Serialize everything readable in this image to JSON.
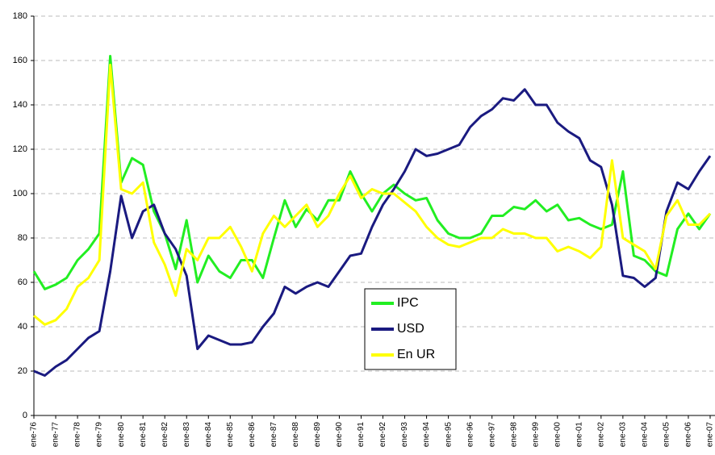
{
  "chart_data": {
    "type": "line",
    "categories": [
      "ene-76",
      null,
      "ene-77",
      null,
      "ene-78",
      null,
      "ene-79",
      null,
      "ene-80",
      null,
      "ene-81",
      null,
      "ene-82",
      null,
      "ene-83",
      null,
      "ene-84",
      null,
      "ene-85",
      null,
      "ene-86",
      null,
      "ene-87",
      null,
      "ene-88",
      null,
      "ene-89",
      null,
      "ene-90",
      null,
      "ene-91",
      null,
      "ene-92",
      null,
      "ene-93",
      null,
      "ene-94",
      null,
      "ene-95",
      null,
      "ene-96",
      null,
      "ene-97",
      null,
      "ene-98",
      null,
      "ene-99",
      null,
      "ene-00",
      null,
      "ene-01",
      null,
      "ene-02",
      null,
      "ene-03",
      null,
      "ene-04",
      null,
      "ene-05",
      null,
      "ene-06",
      null,
      "ene-07"
    ],
    "series": [
      {
        "name": "IPC",
        "color": "#22ee22",
        "values": [
          65,
          57,
          59,
          62,
          70,
          75,
          82,
          162,
          105,
          116,
          113,
          92,
          82,
          66,
          88,
          60,
          72,
          65,
          62,
          70,
          70,
          62,
          80,
          97,
          85,
          93,
          88,
          97,
          97,
          110,
          100,
          92,
          100,
          104,
          100,
          97,
          98,
          88,
          82,
          80,
          80,
          82,
          90,
          90,
          94,
          93,
          97,
          92,
          95,
          88,
          89,
          86,
          84,
          86,
          110,
          72,
          70,
          65,
          63,
          84,
          91,
          84,
          91
        ]
      },
      {
        "name": "USD",
        "color": "#1a1a80",
        "values": [
          20,
          18,
          22,
          25,
          30,
          35,
          38,
          65,
          99,
          80,
          92,
          95,
          82,
          75,
          63,
          30,
          36,
          34,
          32,
          32,
          33,
          40,
          46,
          58,
          55,
          58,
          60,
          58,
          65,
          72,
          73,
          85,
          95,
          102,
          110,
          120,
          117,
          118,
          120,
          122,
          130,
          135,
          138,
          143,
          142,
          147,
          140,
          140,
          132,
          128,
          125,
          115,
          112,
          95,
          63,
          62,
          58,
          62,
          92,
          105,
          102,
          110,
          117
        ]
      },
      {
        "name": "En UR",
        "color": "#ffff00",
        "values": [
          45,
          41,
          43,
          48,
          58,
          62,
          70,
          158,
          102,
          100,
          105,
          78,
          68,
          54,
          75,
          70,
          80,
          80,
          85,
          76,
          65,
          82,
          90,
          85,
          90,
          95,
          85,
          90,
          100,
          108,
          98,
          102,
          100,
          100,
          96,
          92,
          85,
          80,
          77,
          76,
          78,
          80,
          80,
          84,
          82,
          82,
          80,
          80,
          74,
          76,
          74,
          71,
          76,
          115,
          80,
          77,
          74,
          66,
          90,
          97,
          86,
          86,
          91
        ]
      }
    ],
    "ylim": [
      0,
      180
    ],
    "yticks": [
      0,
      20,
      40,
      60,
      80,
      100,
      120,
      140,
      160,
      180
    ],
    "grid": true,
    "legend": "center"
  }
}
